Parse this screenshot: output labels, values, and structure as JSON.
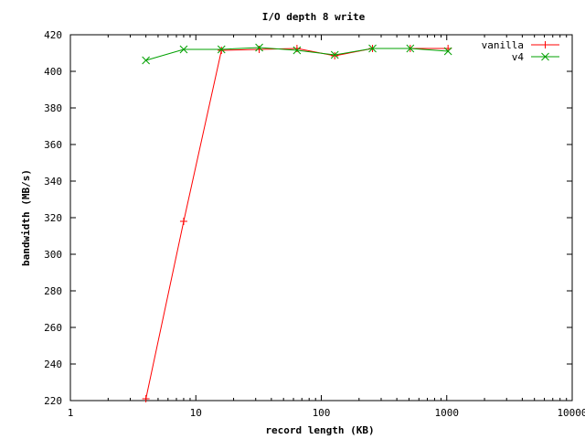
{
  "chart_data": {
    "type": "line",
    "title": "I/O depth 8 write",
    "xlabel": "record length (KB)",
    "ylabel": "bandwidth (MB/s)",
    "x_scale": "log",
    "xlim": [
      1,
      10000
    ],
    "ylim": [
      220,
      420
    ],
    "x_ticks": [
      1,
      10,
      100,
      1000,
      10000
    ],
    "x_tick_labels": [
      "1",
      "10",
      "100",
      "1000",
      "10000"
    ],
    "y_ticks": [
      220,
      240,
      260,
      280,
      300,
      320,
      340,
      360,
      380,
      400,
      420
    ],
    "y_tick_labels": [
      "220",
      "240",
      "260",
      "280",
      "300",
      "320",
      "340",
      "360",
      "380",
      "400",
      "420"
    ],
    "legend_position": "top-right",
    "grid": false,
    "series": [
      {
        "name": "vanilla",
        "color": "#ff0000",
        "marker": "plus",
        "x": [
          4,
          8,
          16,
          32,
          64,
          128,
          256,
          512,
          1024
        ],
        "y": [
          221,
          318,
          411.5,
          412,
          412.5,
          408.5,
          412.5,
          412.5,
          412.5
        ]
      },
      {
        "name": "v4",
        "color": "#00a000",
        "marker": "cross",
        "x": [
          4,
          8,
          16,
          32,
          64,
          128,
          256,
          512,
          1024
        ],
        "y": [
          406,
          412,
          412,
          413,
          411.5,
          409,
          412.5,
          412.5,
          411
        ]
      }
    ]
  }
}
